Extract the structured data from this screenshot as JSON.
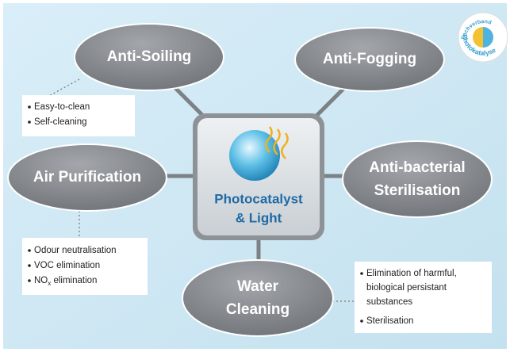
{
  "center": {
    "lines": [
      "Photocatalyst",
      "& Light"
    ]
  },
  "nodes": [
    {
      "lines": [
        "Anti-Soiling"
      ]
    },
    {
      "lines": [
        "Anti-Fogging"
      ]
    },
    {
      "lines": [
        "Air Purification"
      ]
    },
    {
      "lines": [
        "Anti-bacterial",
        "Sterilisation"
      ]
    },
    {
      "lines": [
        "Water",
        "Cleaning"
      ]
    }
  ],
  "notes": [
    {
      "items": [
        "Easy-to-clean",
        "Self-cleaning"
      ]
    },
    {
      "items": [
        "Odour neutralisation",
        "VOC elimination"
      ],
      "nox": {
        "main": "NO",
        "sub": "x",
        "rest": " elimination"
      }
    },
    {
      "items": [
        "Elimination of harmful,",
        "biological persistant",
        "substances"
      ],
      "extra": "Sterilisation"
    }
  ],
  "logo": {
    "top": "Fachverband",
    "bottom": "Photokatalyse"
  }
}
